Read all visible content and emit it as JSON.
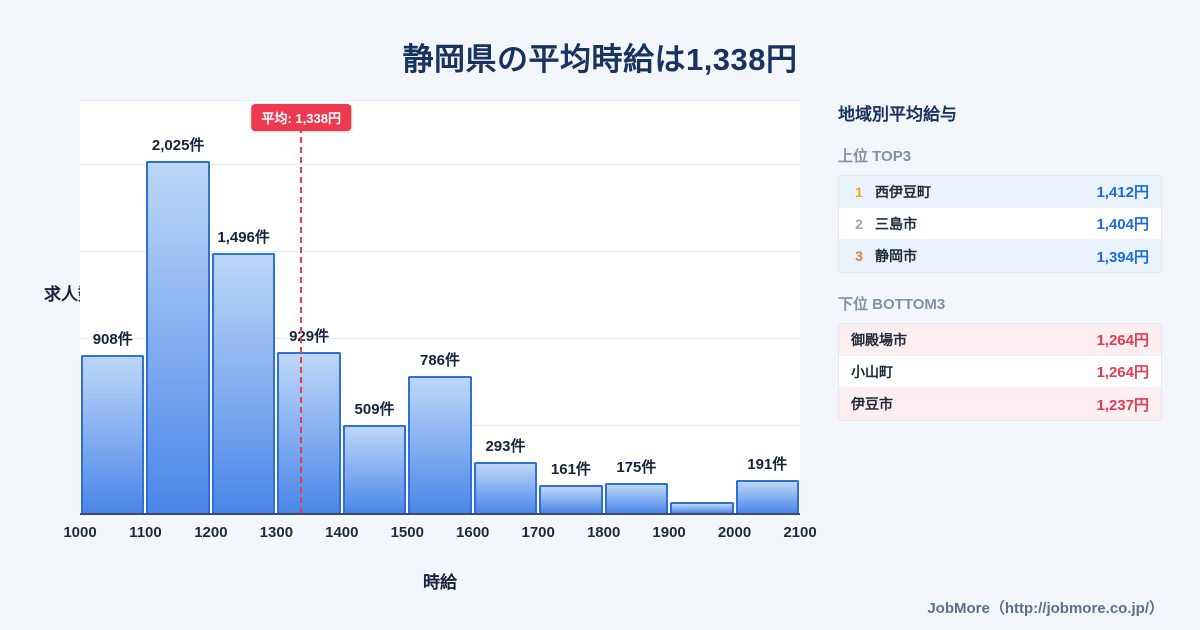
{
  "title": "静岡県の平均時給は1,338円",
  "chart_data": {
    "type": "bar",
    "title": "静岡県の平均時給は1,338円",
    "xlabel": "時給",
    "ylabel": "求人数",
    "xlim": [
      1000,
      2100
    ],
    "ylim": [
      0,
      2370
    ],
    "grid": true,
    "gridlines": [
      500,
      1000,
      1500,
      2000
    ],
    "x_ticks": [
      1000,
      1100,
      1200,
      1300,
      1400,
      1500,
      1600,
      1700,
      1800,
      1900,
      2000,
      2100
    ],
    "bins": [
      {
        "range": [
          1000,
          1100
        ],
        "count": 908,
        "label": "908件"
      },
      {
        "range": [
          1100,
          1200
        ],
        "count": 2025,
        "label": "2,025件"
      },
      {
        "range": [
          1200,
          1300
        ],
        "count": 1496,
        "label": "1,496件"
      },
      {
        "range": [
          1300,
          1400
        ],
        "count": 929,
        "label": "929件"
      },
      {
        "range": [
          1400,
          1500
        ],
        "count": 509,
        "label": "509件"
      },
      {
        "range": [
          1500,
          1600
        ],
        "count": 786,
        "label": "786件"
      },
      {
        "range": [
          1600,
          1700
        ],
        "count": 293,
        "label": "293件"
      },
      {
        "range": [
          1700,
          1800
        ],
        "count": 161,
        "label": "161件"
      },
      {
        "range": [
          1800,
          1900
        ],
        "count": 175,
        "label": "175件"
      },
      {
        "range": [
          1900,
          2000
        ],
        "count": 65,
        "label": ""
      },
      {
        "range": [
          2000,
          2100
        ],
        "count": 191,
        "label": "191件"
      }
    ],
    "average": {
      "value": 1338,
      "label": "平均: 1,338円"
    }
  },
  "sidebar": {
    "heading": "地域別平均給与",
    "top": {
      "heading": "上位 TOP3",
      "rows": [
        {
          "rank": "1",
          "name": "西伊豆町",
          "value": "1,412円"
        },
        {
          "rank": "2",
          "name": "三島市",
          "value": "1,404円"
        },
        {
          "rank": "3",
          "name": "静岡市",
          "value": "1,394円"
        }
      ]
    },
    "bottom": {
      "heading": "下位 BOTTOM3",
      "rows": [
        {
          "name": "御殿場市",
          "value": "1,264円"
        },
        {
          "name": "小山町",
          "value": "1,264円"
        },
        {
          "name": "伊豆市",
          "value": "1,237円"
        }
      ]
    }
  },
  "footer": {
    "credit": "JobMore（http://jobmore.co.jp/）"
  },
  "colors": {
    "accent-red": "#ee3a50",
    "bar-border": "#2f6fd8",
    "bar-top": "#bdd7f8",
    "bar-bottom": "#4a86e8",
    "value-blue": "#1b6be0",
    "value-red": "#e23b52",
    "rank1": "#f2a71b",
    "rank2": "#9aa7b8",
    "rank3": "#e2802f",
    "top-row-bg": "#e9f2fd",
    "bottom-row-bg": "#fdeef1",
    "title-navy": "#18335e"
  }
}
